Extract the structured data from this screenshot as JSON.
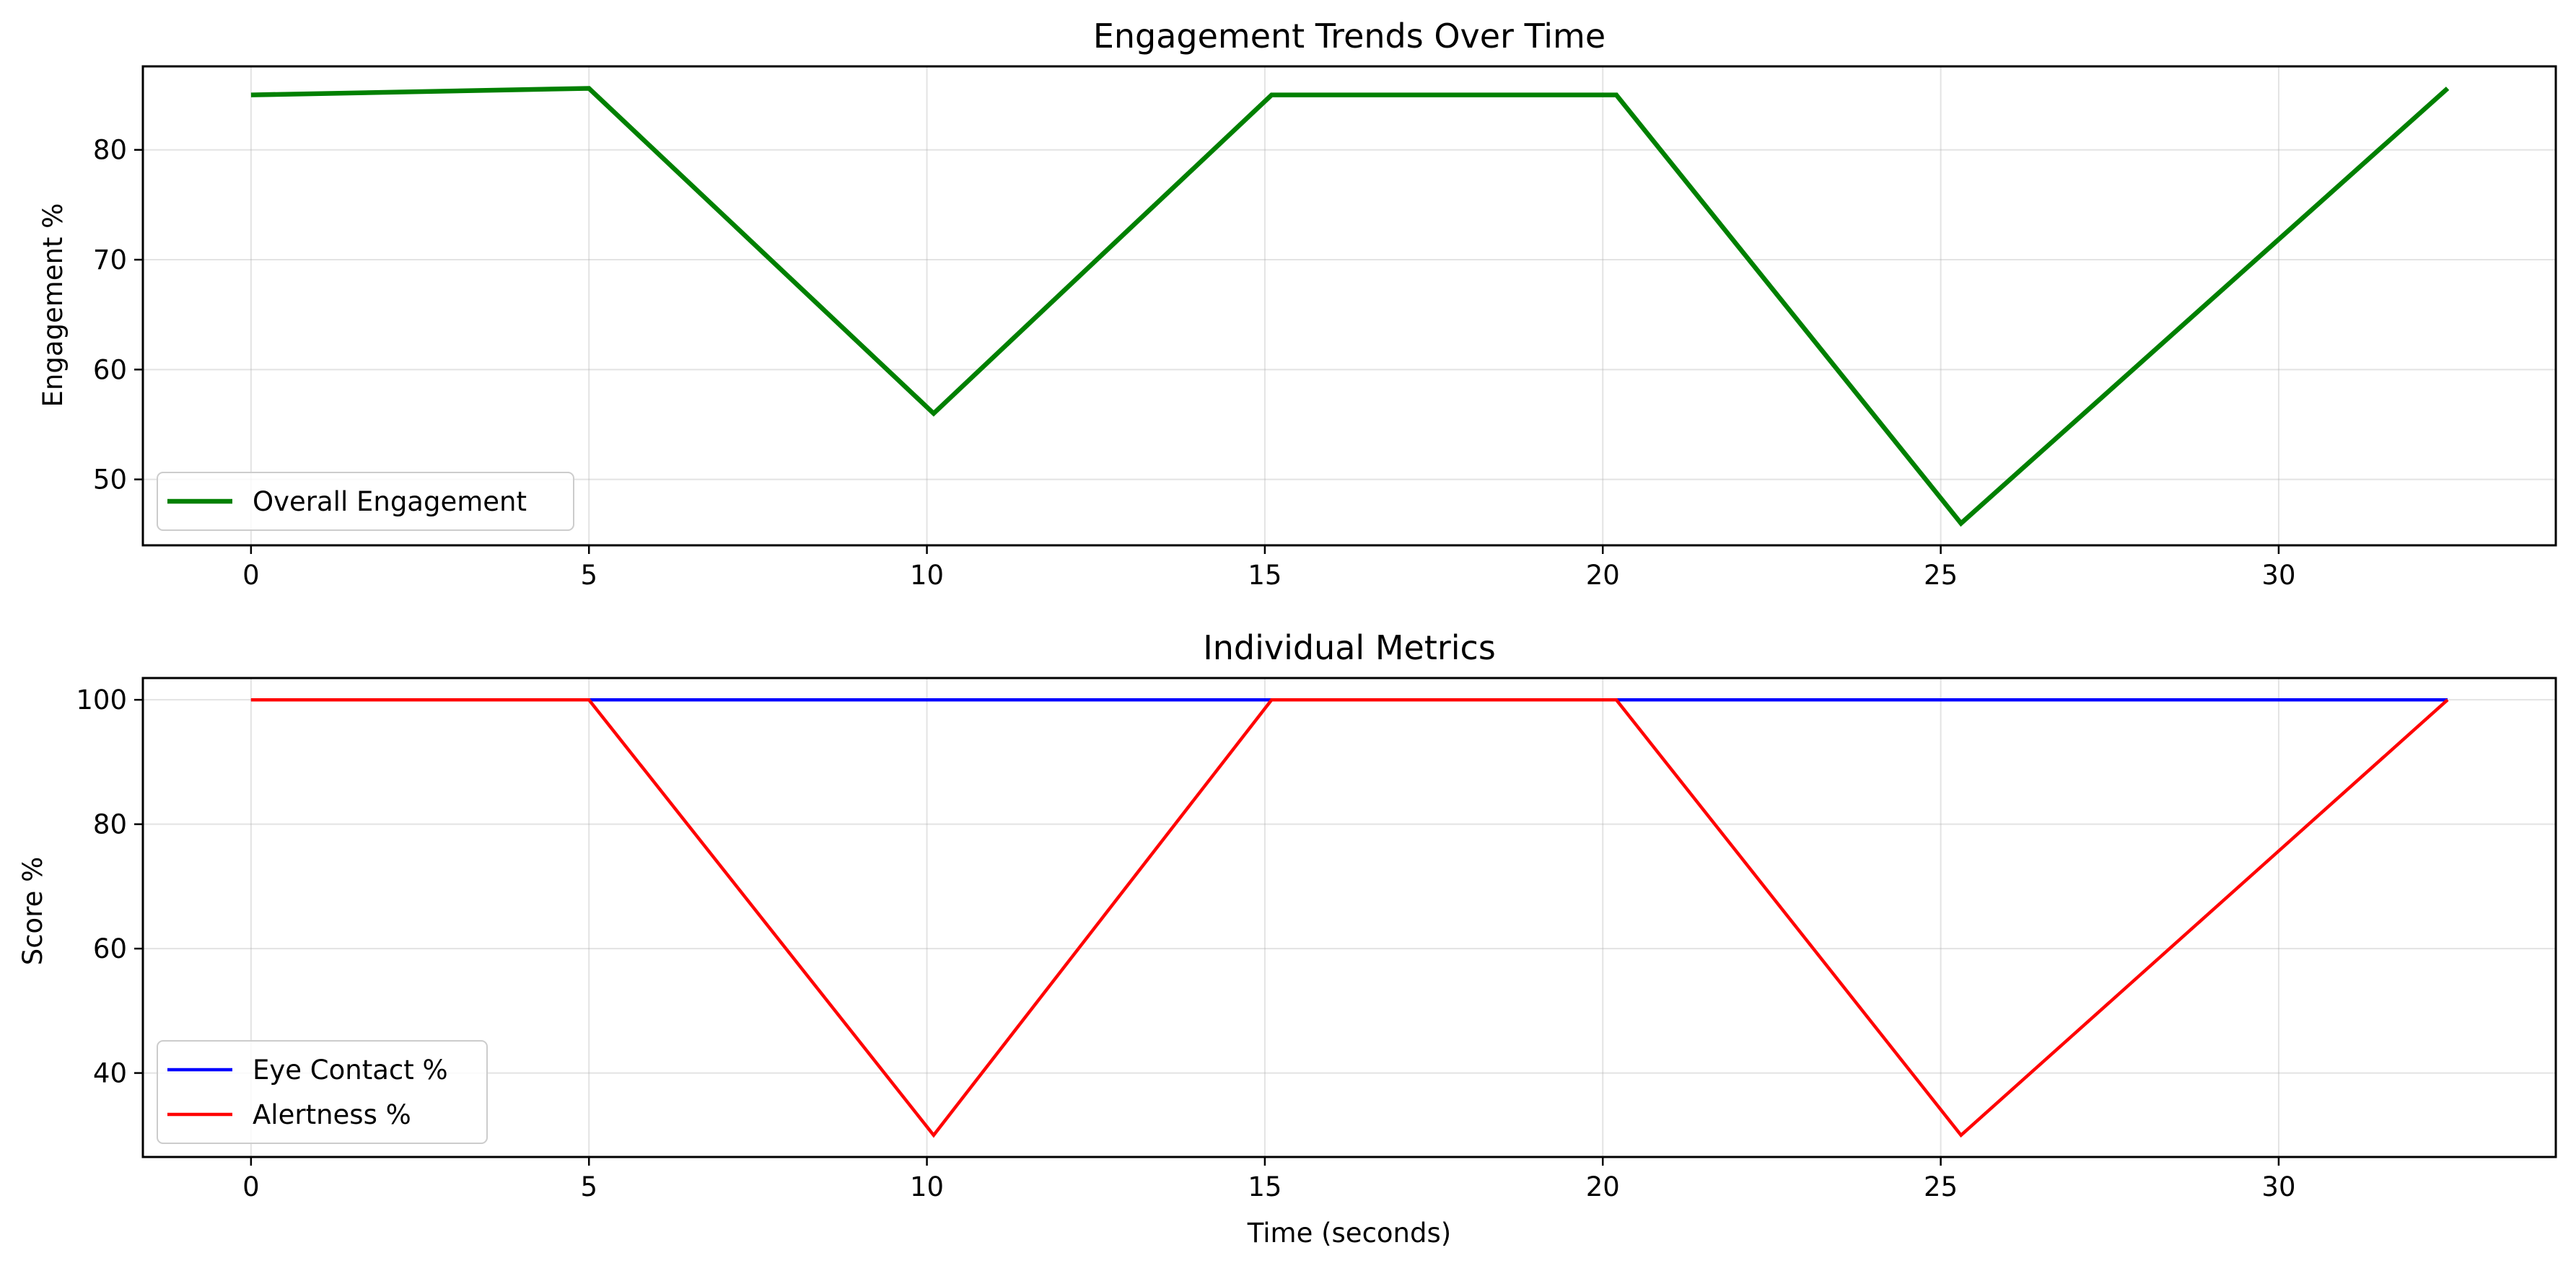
{
  "chart_data": [
    {
      "type": "line",
      "title": "Engagement Trends Over Time",
      "xlabel": "",
      "ylabel": "Engagement %",
      "xlim": [
        -1.6,
        34.1
      ],
      "ylim": [
        44.0,
        87.6
      ],
      "xticks": [
        0,
        5,
        10,
        15,
        20,
        25,
        30
      ],
      "yticks": [
        50,
        60,
        70,
        80
      ],
      "grid": true,
      "legend_position": "lower-left",
      "series": [
        {
          "name": "Overall Engagement",
          "color": "#008000",
          "x": [
            0,
            5.0,
            10.1,
            15.1,
            20.2,
            25.3,
            32.5
          ],
          "y": [
            85.0,
            85.6,
            56.0,
            85.0,
            85.0,
            46.0,
            85.6
          ]
        }
      ]
    },
    {
      "type": "line",
      "title": "Individual Metrics",
      "xlabel": "Time (seconds)",
      "ylabel": "Score %",
      "xlim": [
        -1.6,
        34.1
      ],
      "ylim": [
        26.5,
        103.5
      ],
      "xticks": [
        0,
        5,
        10,
        15,
        20,
        25,
        30
      ],
      "yticks": [
        40,
        60,
        80,
        100
      ],
      "grid": true,
      "legend_position": "lower-left",
      "series": [
        {
          "name": "Eye Contact %",
          "color": "#0000ff",
          "x": [
            0,
            5.0,
            10.1,
            15.1,
            20.2,
            25.3,
            32.5
          ],
          "y": [
            100,
            100,
            100,
            100,
            100,
            100,
            100
          ]
        },
        {
          "name": "Alertness %",
          "color": "#ff0000",
          "x": [
            0,
            5.0,
            10.1,
            15.1,
            20.2,
            25.3,
            32.5
          ],
          "y": [
            100,
            100,
            30,
            100,
            100,
            30,
            100
          ]
        }
      ]
    }
  ]
}
